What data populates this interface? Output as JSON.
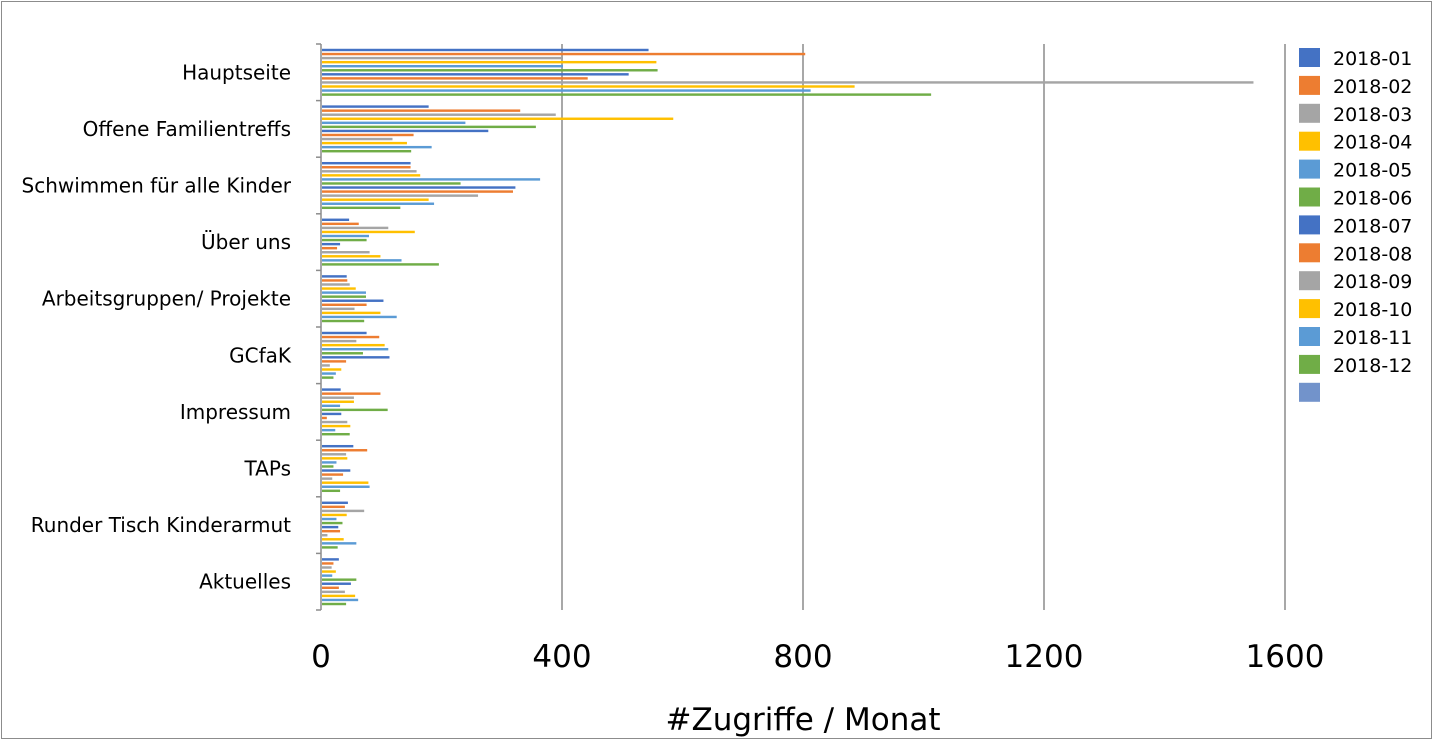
{
  "chart_data": {
    "type": "bar",
    "orientation": "horizontal",
    "title": "",
    "xlabel": "#Zugriffe / Monat",
    "ylabel": "",
    "xlim": [
      0,
      1600
    ],
    "xticks": [
      "0",
      "400",
      "800",
      "1200",
      "1600"
    ],
    "grid": "vertical",
    "legend_position": "right",
    "categories": [
      "Hauptseite",
      "Offene Familientreffs",
      "Schwimmen für alle Kinder",
      "Über uns",
      "Arbeitsgruppen/ Projekte",
      "GCfaK",
      "Impressum",
      "TAPs",
      "Runder Tisch Kinderarmut",
      "Aktuelles"
    ],
    "series": [
      {
        "name": "2018-01",
        "color": "#4472C4",
        "values": [
          542,
          177,
          147,
          45,
          41,
          74,
          31,
          52,
          43,
          28
        ]
      },
      {
        "name": "2018-02",
        "color": "#ED7D31",
        "values": [
          802,
          329,
          147,
          61,
          42,
          95,
          97,
          75,
          38,
          19
        ]
      },
      {
        "name": "2018-03",
        "color": "#A5A5A5",
        "values": [
          400,
          388,
          157,
          110,
          46,
          57,
          53,
          40,
          70,
          16
        ]
      },
      {
        "name": "2018-04",
        "color": "#FFC000",
        "values": [
          555,
          583,
          163,
          154,
          56,
          104,
          53,
          42,
          41,
          23
        ]
      },
      {
        "name": "2018-05",
        "color": "#5B9BD5",
        "values": [
          400,
          238,
          362,
          78,
          73,
          110,
          30,
          24,
          24,
          17
        ]
      },
      {
        "name": "2018-06",
        "color": "#70AD47",
        "values": [
          557,
          355,
          230,
          74,
          73,
          68,
          109,
          19,
          34,
          57
        ]
      },
      {
        "name": "2018-07",
        "color": "#4472C4",
        "values": [
          509,
          276,
          321,
          30,
          102,
          112,
          32,
          47,
          27,
          48
        ]
      },
      {
        "name": "2018-08",
        "color": "#ED7D31",
        "values": [
          441,
          152,
          317,
          25,
          74,
          40,
          8,
          35,
          30,
          28
        ]
      },
      {
        "name": "2018-09",
        "color": "#A5A5A5",
        "values": [
          1546,
          117,
          259,
          79,
          54,
          13,
          42,
          17,
          9,
          38
        ]
      },
      {
        "name": "2018-10",
        "color": "#FFC000",
        "values": [
          884,
          141,
          177,
          97,
          97,
          32,
          47,
          77,
          36,
          55
        ]
      },
      {
        "name": "2018-11",
        "color": "#5B9BD5",
        "values": [
          811,
          182,
          186,
          132,
          124,
          23,
          22,
          79,
          57,
          60
        ]
      },
      {
        "name": "2018-12",
        "color": "#70AD47",
        "values": [
          1011,
          148,
          130,
          194,
          70,
          19,
          46,
          30,
          26,
          40
        ]
      }
    ],
    "legend_entries": [
      {
        "name": "2018-01",
        "color": "#4472C4"
      },
      {
        "name": "2018-02",
        "color": "#ED7D31"
      },
      {
        "name": "2018-03",
        "color": "#A5A5A5"
      },
      {
        "name": "2018-04",
        "color": "#FFC000"
      },
      {
        "name": "2018-05",
        "color": "#5B9BD5"
      },
      {
        "name": "2018-06",
        "color": "#70AD47"
      },
      {
        "name": "2018-07",
        "color": "#4472C4"
      },
      {
        "name": "2018-08",
        "color": "#ED7D31"
      },
      {
        "name": "2018-09",
        "color": "#A5A5A5"
      },
      {
        "name": "2018-10",
        "color": "#FFC000"
      },
      {
        "name": "2018-11",
        "color": "#5B9BD5"
      },
      {
        "name": "2018-12",
        "color": "#70AD47"
      },
      {
        "name": "",
        "color": "#7293CB"
      }
    ],
    "colors": {
      "gridline": "#8c8c8c",
      "axis": "#8c8c8c"
    }
  }
}
